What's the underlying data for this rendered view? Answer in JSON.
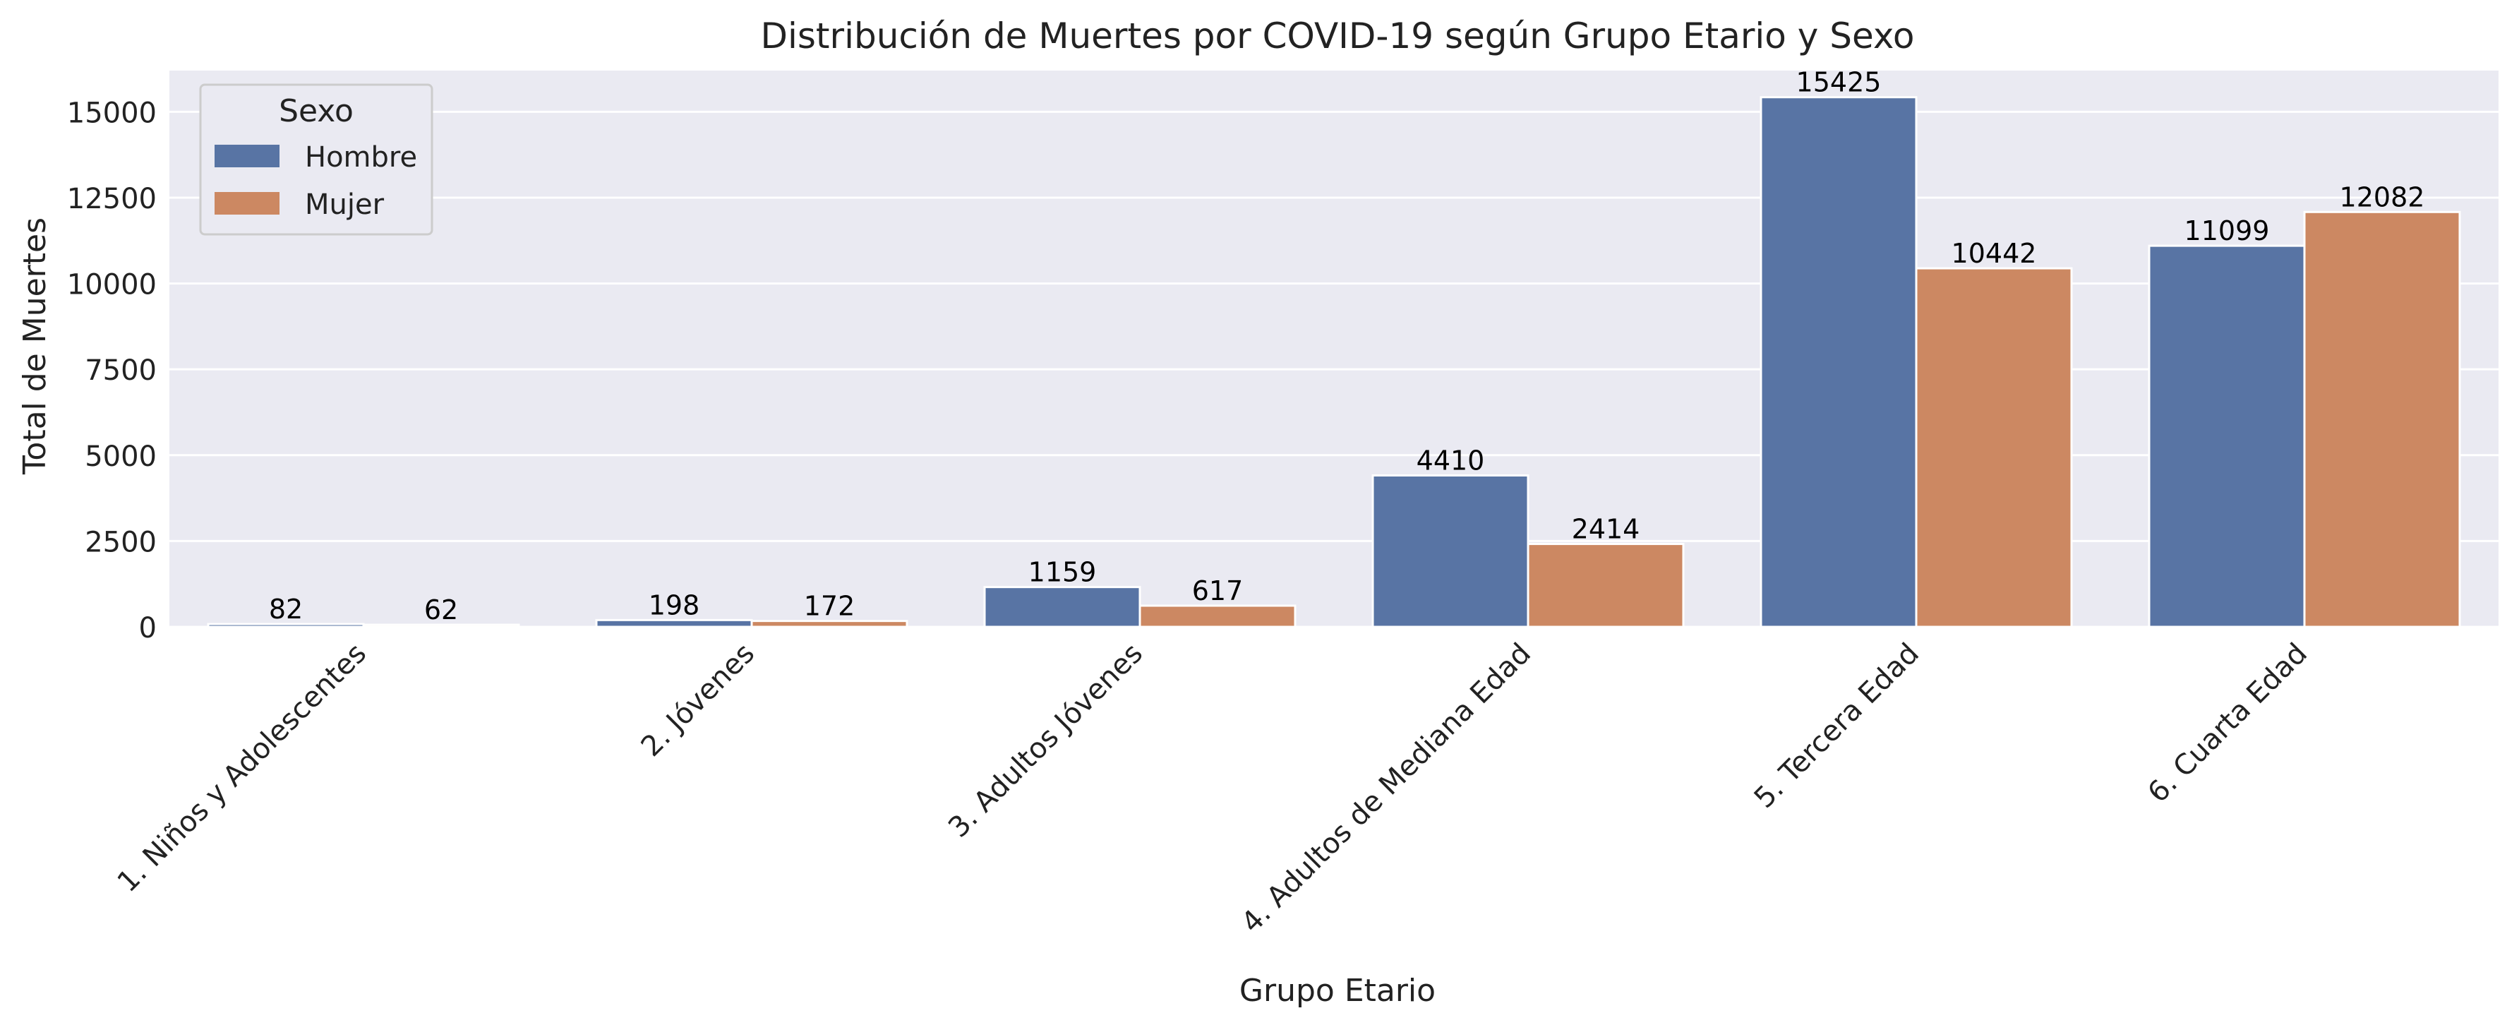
{
  "chart_data": {
    "type": "bar",
    "title": "Distribución de Muertes por COVID-19 según Grupo Etario y Sexo",
    "xlabel": "Grupo Etario",
    "ylabel": "Total de Muertes",
    "categories": [
      "1. Niños y Adolescentes",
      "2. Jóvenes",
      "3. Adultos Jóvenes",
      "4. Adultos de Mediana Edad",
      "5. Tercera Edad",
      "6. Cuarta Edad"
    ],
    "series": [
      {
        "name": "Hombre",
        "values": [
          82,
          198,
          1159,
          4410,
          15425,
          11099
        ],
        "color": "#5874a4"
      },
      {
        "name": "Mujer",
        "values": [
          62,
          172,
          617,
          2414,
          10442,
          12082
        ],
        "color": "#cc8862"
      }
    ],
    "ylim": [
      0,
      16200
    ],
    "yticks": [
      0,
      2500,
      5000,
      7500,
      10000,
      12500,
      15000
    ],
    "legend": {
      "title": "Sexo",
      "position": "top-left"
    },
    "grid": true,
    "background": "#eaeaf2"
  }
}
